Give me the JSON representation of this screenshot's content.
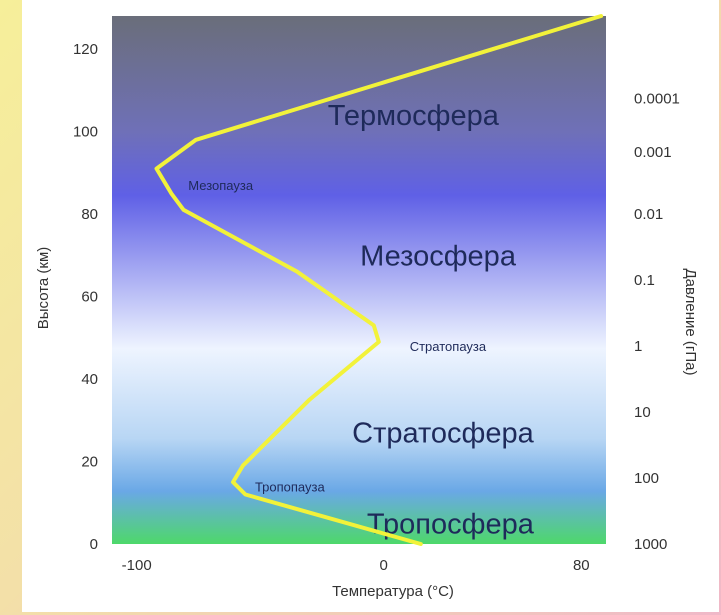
{
  "chart_data": {
    "type": "line",
    "xlabel": "Температура (°C)",
    "ylabel": "Высота (км)",
    "y2label": "Давление (гПа)",
    "xlim": [
      -110,
      90
    ],
    "ylim": [
      0,
      128
    ],
    "x_ticks": [
      {
        "value": -100,
        "label": "-100"
      },
      {
        "value": 0,
        "label": "0"
      },
      {
        "value": 80,
        "label": "80"
      }
    ],
    "y_ticks": [
      {
        "value": 0,
        "label": "0"
      },
      {
        "value": 20,
        "label": "20"
      },
      {
        "value": 40,
        "label": "40"
      },
      {
        "value": 60,
        "label": "60"
      },
      {
        "value": 80,
        "label": "80"
      },
      {
        "value": 100,
        "label": "100"
      },
      {
        "value": 120,
        "label": "120"
      }
    ],
    "pressure_ticks": [
      {
        "altitude": 0,
        "label": "1000"
      },
      {
        "altitude": 16,
        "label": "100"
      },
      {
        "altitude": 32,
        "label": "10"
      },
      {
        "altitude": 48,
        "label": "1"
      },
      {
        "altitude": 64,
        "label": "0.1"
      },
      {
        "altitude": 80,
        "label": "0.01"
      },
      {
        "altitude": 95,
        "label": "0.001"
      },
      {
        "altitude": 108,
        "label": "0.0001"
      }
    ],
    "series": [
      {
        "color": "#f2f23a",
        "points": [
          {
            "x": 15,
            "y": 0
          },
          {
            "x": -56,
            "y": 12
          },
          {
            "x": -61,
            "y": 15
          },
          {
            "x": -57,
            "y": 19
          },
          {
            "x": -30,
            "y": 35
          },
          {
            "x": -2,
            "y": 49
          },
          {
            "x": -4,
            "y": 53
          },
          {
            "x": -35,
            "y": 66
          },
          {
            "x": -81,
            "y": 81
          },
          {
            "x": -86,
            "y": 85
          },
          {
            "x": -92,
            "y": 91
          },
          {
            "x": -76,
            "y": 98
          },
          {
            "x": 88,
            "y": 128
          }
        ]
      }
    ],
    "layers": [
      {
        "label": "Термосфера",
        "x": 12,
        "y": 104,
        "size": "big"
      },
      {
        "label": "Мезопауза",
        "x": -66,
        "y": 87,
        "size": "small"
      },
      {
        "label": "Мезосфера",
        "x": 22,
        "y": 70,
        "size": "big"
      },
      {
        "label": "Стратопауза",
        "x": 26,
        "y": 48,
        "size": "small"
      },
      {
        "label": "Стратосфера",
        "x": 24,
        "y": 27,
        "size": "big"
      },
      {
        "label": "Тропопауза",
        "x": -38,
        "y": 14,
        "size": "small"
      },
      {
        "label": "Тропосфера",
        "x": 27,
        "y": 5,
        "size": "big"
      }
    ],
    "colors": {
      "top": "#6a6e7a",
      "thermosphere": "#6f70b8",
      "mesopause": "#5f60e6",
      "stratopause": "#eef4ff",
      "stratosphere": "#b8d6f4",
      "tropopause": "#6aa8e6",
      "bottom": "#4ed86a",
      "line": "#f2f23a"
    }
  }
}
